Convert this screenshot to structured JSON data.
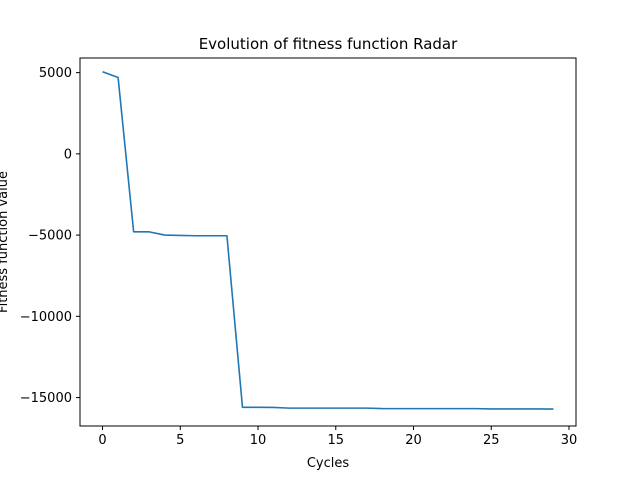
{
  "chart_data": {
    "type": "line",
    "title": "Evolution of fitness function Radar",
    "xlabel": "Cycles",
    "ylabel": "Fitness function value",
    "xlim": [
      -1.45,
      30.45
    ],
    "ylim": [
      -16750,
      5900
    ],
    "xticks": [
      0,
      5,
      10,
      15,
      20,
      25,
      30
    ],
    "yticks": [
      5000,
      0,
      -5000,
      -10000,
      -15000
    ],
    "grid": false,
    "color": "#1f77b4",
    "series": [
      {
        "x": [
          0,
          1,
          2,
          3,
          4,
          5,
          6,
          7,
          8,
          9,
          10,
          11,
          12,
          13,
          14,
          15,
          16,
          17,
          18,
          19,
          20,
          21,
          22,
          23,
          24,
          25,
          26,
          27,
          28,
          29
        ],
        "values": [
          5050,
          4700,
          -4800,
          -4800,
          -5000,
          -5020,
          -5040,
          -5040,
          -5040,
          -15600,
          -15600,
          -15610,
          -15650,
          -15650,
          -15650,
          -15650,
          -15650,
          -15650,
          -15680,
          -15680,
          -15680,
          -15680,
          -15680,
          -15680,
          -15680,
          -15700,
          -15700,
          -15700,
          -15700,
          -15710
        ]
      }
    ]
  }
}
